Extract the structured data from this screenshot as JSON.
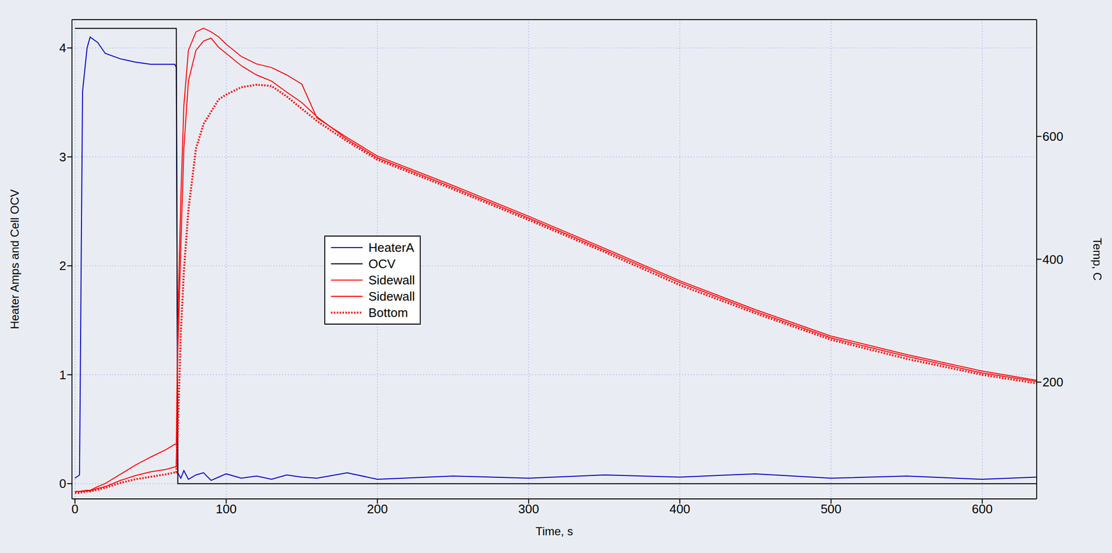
{
  "chart_data": {
    "type": "line",
    "x_label": "Time, s",
    "y_label": "Heater Amps and Cell OCV",
    "y2_label": "Temp, C",
    "xlim": [
      -2,
      636
    ],
    "xticks": [
      0,
      100,
      200,
      300,
      400,
      500,
      600
    ],
    "ylim": [
      -0.14,
      4.26
    ],
    "yticks": [
      0,
      1,
      2,
      3,
      4
    ],
    "y2lim": [
      10,
      790
    ],
    "y2ticks": [
      200,
      400,
      600
    ],
    "grid": true,
    "legend": "center",
    "x": [
      0,
      3,
      5,
      8,
      10,
      15,
      20,
      30,
      40,
      50,
      60,
      66,
      67,
      68,
      70,
      72,
      75,
      80,
      85,
      90,
      95,
      100,
      110,
      120,
      130,
      140,
      150,
      160,
      180,
      200,
      250,
      300,
      350,
      400,
      450,
      500,
      550,
      600,
      636
    ],
    "series": [
      {
        "name": "HeaterA",
        "color": "#0000cc",
        "axis": "y",
        "line_style": "solid",
        "values": [
          0.05,
          0.08,
          3.6,
          4.0,
          4.1,
          4.05,
          3.95,
          3.9,
          3.87,
          3.85,
          3.85,
          3.85,
          3.82,
          0.1,
          0.05,
          0.12,
          0.04,
          0.08,
          0.1,
          0.03,
          0.06,
          0.09,
          0.05,
          0.07,
          0.04,
          0.08,
          0.06,
          0.05,
          0.1,
          0.04,
          0.07,
          0.05,
          0.08,
          0.06,
          0.09,
          0.05,
          0.07,
          0.04,
          0.06
        ]
      },
      {
        "name": "OCV",
        "color": "#000000",
        "axis": "y",
        "line_style": "solid",
        "values": [
          4.18,
          4.18,
          4.18,
          4.18,
          4.18,
          4.18,
          4.18,
          4.18,
          4.18,
          4.18,
          4.18,
          4.18,
          4.18,
          0,
          0,
          0,
          0,
          0,
          0,
          0,
          0,
          0,
          0,
          0,
          0,
          0,
          0,
          0,
          0,
          0,
          0,
          0,
          0,
          0,
          0,
          0,
          0,
          0,
          0
        ]
      },
      {
        "name": "Sidewall",
        "color": "#ff0000",
        "axis": "y2",
        "line_style": "solid",
        "values": [
          22,
          22,
          23,
          24,
          24,
          30,
          35,
          50,
          65,
          78,
          90,
          99,
          99,
          300,
          500,
          650,
          740,
          770,
          776,
          770,
          762,
          750,
          730,
          718,
          712,
          700,
          685,
          630,
          598,
          568,
          520,
          470,
          418,
          365,
          318,
          275,
          245,
          218,
          203
        ]
      },
      {
        "name": "Sidewall",
        "color": "#ff0000",
        "axis": "y2",
        "line_style": "solid",
        "values": [
          22,
          22,
          22,
          23,
          23,
          27,
          30,
          40,
          48,
          54,
          58,
          62,
          62,
          250,
          420,
          580,
          690,
          740,
          755,
          760,
          745,
          735,
          715,
          700,
          690,
          672,
          655,
          632,
          595,
          565,
          517,
          467,
          415,
          362,
          315,
          272,
          242,
          215,
          201
        ]
      },
      {
        "name": "Bottom",
        "color": "#ff0000",
        "axis": "y2",
        "line_style": "dotted",
        "values": [
          20,
          20,
          21,
          22,
          22,
          25,
          28,
          36,
          42,
          46,
          50,
          53,
          53,
          120,
          280,
          380,
          480,
          580,
          620,
          640,
          660,
          668,
          680,
          684,
          682,
          665,
          645,
          625,
          592,
          562,
          514,
          464,
          412,
          358,
          312,
          269,
          238,
          212,
          198
        ]
      }
    ]
  }
}
